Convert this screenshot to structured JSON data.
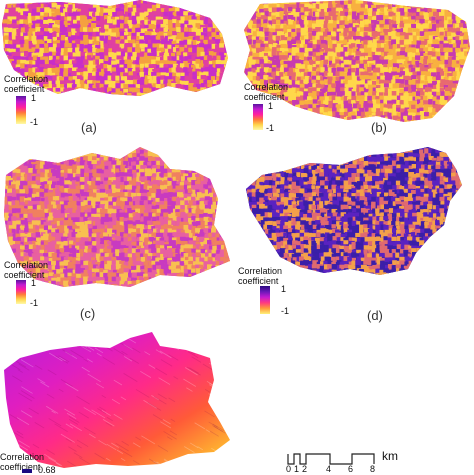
{
  "panels": [
    {
      "id": "a",
      "label": "(a)",
      "legend_title_line1": "Correlation",
      "legend_title_line2": "coefficient",
      "legend_max": "1",
      "legend_min": "-1",
      "colormap": [
        "#5a14a0",
        "#c41bd1",
        "#ff1fa0",
        "#ff7a3a",
        "#ffd54a",
        "#fff9a8"
      ],
      "dominant_colors": [
        "#c82ec8",
        "#e040a0",
        "#f5a040",
        "#ffd84a"
      ]
    },
    {
      "id": "b",
      "label": "(b)",
      "legend_title_line1": "Correlation",
      "legend_title_line2": "coefficient",
      "legend_max": "1",
      "legend_min": "-1",
      "colormap": [
        "#5a14a0",
        "#c41bd1",
        "#ff1fa0",
        "#ff7a3a",
        "#ffd54a",
        "#fff9a8"
      ],
      "dominant_colors": [
        "#ffd84a",
        "#f8b040",
        "#e86a70",
        "#c83ab0"
      ]
    },
    {
      "id": "c",
      "label": "(c)",
      "legend_title_line1": "Correlation",
      "legend_title_line2": "coefficient",
      "legend_max": "1",
      "legend_min": "-1",
      "colormap": [
        "#5a14a0",
        "#c41bd1",
        "#ff1fa0",
        "#ff7a3a",
        "#ffd54a",
        "#fff9a8"
      ],
      "dominant_colors": [
        "#e860a0",
        "#f08060",
        "#c83ac0",
        "#f8c050"
      ]
    },
    {
      "id": "d",
      "label": "(d)",
      "legend_title_line1": "Correlation",
      "legend_title_line2": "coefficient",
      "legend_max": "1",
      "legend_min": "-1",
      "colormap": [
        "#2a0a80",
        "#6a18b8",
        "#c41bd1",
        "#ff3a80",
        "#ff9a3a",
        "#fff27a"
      ],
      "dominant_colors": [
        "#3b1fa8",
        "#5a22c0",
        "#e06a70",
        "#f4a04a"
      ]
    },
    {
      "id": "e",
      "label": "",
      "legend_title_line1": "Correlation",
      "legend_title_line2": "coefficient",
      "legend_max": "",
      "legend_min": "0.68",
      "colormap": [
        "#9a1ed8",
        "#d01ec8",
        "#ff1f8f",
        "#ff5a3a",
        "#ffb030",
        "#fff27a"
      ],
      "dominant_colors": [
        "#a020d8",
        "#ff2a80",
        "#ff6a30",
        "#ffe040"
      ]
    }
  ],
  "scale_bar": {
    "ticks": [
      "0",
      "1",
      "2",
      "4",
      "6",
      "8"
    ],
    "unit": "km"
  }
}
